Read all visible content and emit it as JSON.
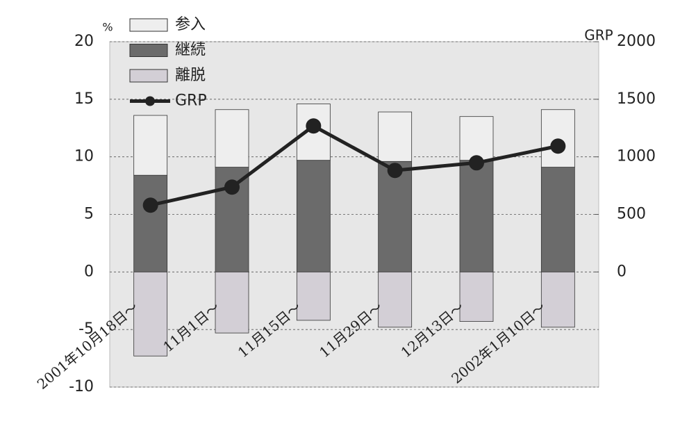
{
  "chart_data": {
    "type": "bar",
    "stacked": true,
    "categories": [
      "2001年10月18日〜",
      "11月1日〜",
      "11月15日〜",
      "11月29日〜",
      "12月13日〜",
      "2002年1月10日〜"
    ],
    "series": [
      {
        "name": "継続",
        "color": "#6b6b6b",
        "values": [
          8.4,
          9.1,
          9.7,
          9.6,
          9.7,
          9.1
        ]
      },
      {
        "name": "参入",
        "color": "#eeeeee",
        "values": [
          5.2,
          5.0,
          4.9,
          4.3,
          3.8,
          5.0
        ]
      },
      {
        "name": "離脱",
        "color": "#d3cfd6",
        "values": [
          -7.3,
          -5.3,
          -4.2,
          -4.8,
          -4.3,
          -4.8
        ]
      },
      {
        "name": "GRP",
        "type": "line",
        "axis": "y2",
        "color": "#222222",
        "values": [
          580,
          737,
          1268,
          882,
          948,
          1093
        ]
      }
    ],
    "legend_order": [
      1,
      0,
      2,
      3
    ],
    "y_label": "%",
    "y2_label": "GRP",
    "ylim": [
      -10,
      20
    ],
    "yticks": [
      -10,
      -5,
      0,
      5,
      10,
      15,
      20
    ],
    "y2lim": [
      -1000,
      2000
    ],
    "y2ticks": [
      0,
      500,
      1000,
      1500,
      2000
    ],
    "grid": true,
    "legend": "top-left"
  }
}
